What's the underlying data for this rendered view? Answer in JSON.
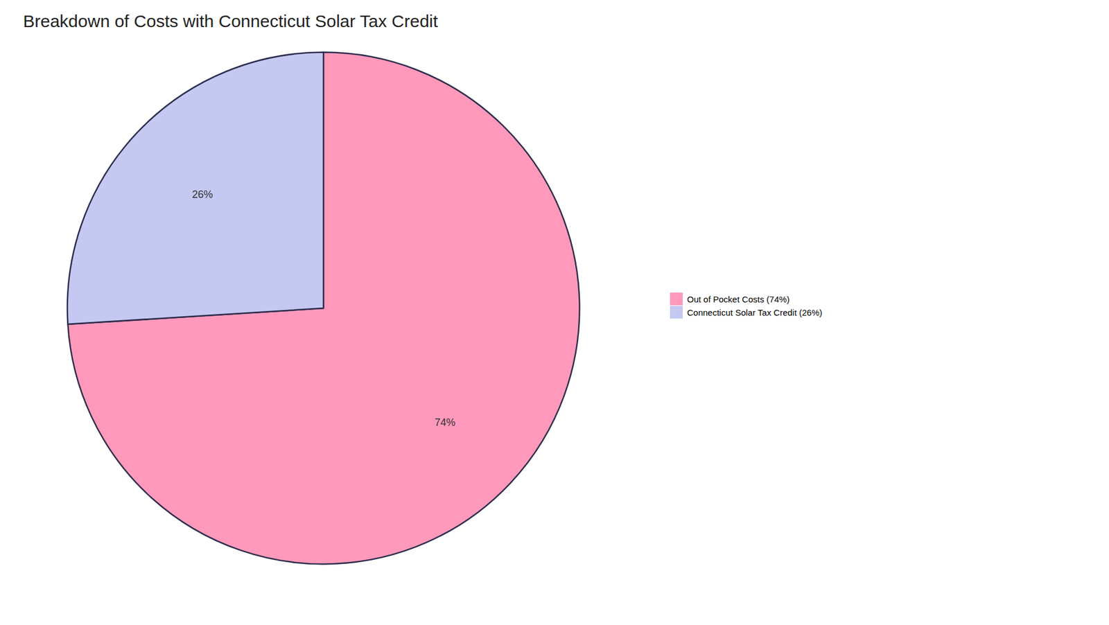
{
  "chart_data": {
    "type": "pie",
    "title": "Breakdown of Costs with Connecticut Solar Tax Credit",
    "categories": [
      "Out of Pocket Costs (74%)",
      "Connecticut Solar Tax Credit (26%)"
    ],
    "values": [
      74,
      26
    ],
    "value_labels": [
      "74%",
      "26%"
    ],
    "colors": [
      "#FF99BB",
      "#C5C8F0"
    ],
    "data_labels": true,
    "legend": "right"
  }
}
